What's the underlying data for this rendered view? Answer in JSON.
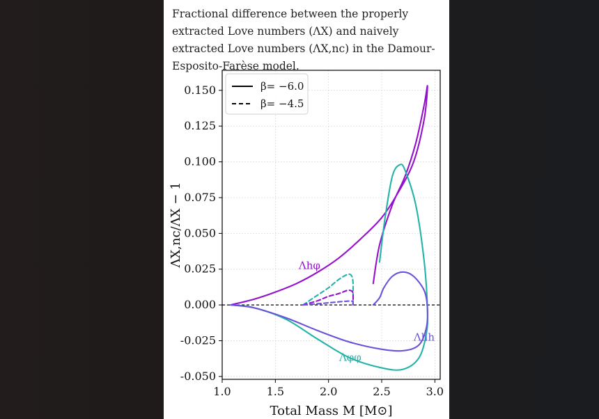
{
  "caption": "Fractional difference between the properly extracted Love numbers (ΛX) and naively extracted Love numbers (ΛX,nc) in the Damour-Esposito-Farèse model.",
  "colors": {
    "h_phi": "#9410cc",
    "phi_phi": "#22b3a8",
    "h_h": "#6a52d8",
    "baseline": "#000000",
    "background": "#1f1b1b"
  },
  "chart_data": {
    "type": "line",
    "xlabel": "Total Mass M [M⊙]",
    "ylabel": "ΛX,nc/ΛX − 1",
    "xlim": [
      1.0,
      3.05
    ],
    "ylim": [
      -0.052,
      0.164
    ],
    "xticks": [
      1.0,
      1.5,
      2.0,
      2.5,
      3.0
    ],
    "xtick_labels": [
      "1.0",
      "1.5",
      "2.0",
      "2.5",
      "3.0"
    ],
    "yticks": [
      -0.05,
      -0.025,
      0.0,
      0.025,
      0.05,
      0.075,
      0.1,
      0.125,
      0.15
    ],
    "ytick_labels": [
      "-0.050",
      "-0.025",
      "0.000",
      "0.025",
      "0.050",
      "0.075",
      "0.100",
      "0.125",
      "0.150"
    ],
    "grid": true,
    "legend": {
      "placement": "top-left",
      "entries": [
        {
          "label": "β= −6.0",
          "style": "solid"
        },
        {
          "label": "β= −4.5",
          "style": "dashed"
        }
      ]
    },
    "series": [
      {
        "curve": "Λhφ",
        "beta": -6.0,
        "style": "solid",
        "color": "#9410cc",
        "x": [
          1.08,
          1.3,
          1.5,
          1.7,
          1.9,
          2.1,
          2.3,
          2.5,
          2.65,
          2.8,
          2.9,
          2.93,
          2.9,
          2.82,
          2.72,
          2.6,
          2.48,
          2.42
        ],
        "y": [
          0.0,
          0.004,
          0.009,
          0.015,
          0.023,
          0.033,
          0.046,
          0.061,
          0.078,
          0.1,
          0.13,
          0.153,
          0.14,
          0.113,
          0.09,
          0.07,
          0.042,
          0.015
        ]
      },
      {
        "curve": "Λφφ",
        "beta": -6.0,
        "style": "solid",
        "color": "#22b3a8",
        "x": [
          1.08,
          1.3,
          1.6,
          1.9,
          2.2,
          2.5,
          2.7,
          2.85,
          2.92,
          2.93,
          2.9,
          2.82,
          2.72,
          2.67,
          2.6,
          2.53,
          2.48
        ],
        "y": [
          0.0,
          -0.002,
          -0.01,
          -0.024,
          -0.037,
          -0.044,
          -0.045,
          -0.037,
          -0.02,
          -0.003,
          0.03,
          0.07,
          0.094,
          0.098,
          0.09,
          0.06,
          0.03
        ]
      },
      {
        "curve": "Λhh",
        "beta": -6.0,
        "style": "solid",
        "color": "#6a52d8",
        "x": [
          1.08,
          1.3,
          1.6,
          1.9,
          2.2,
          2.5,
          2.7,
          2.85,
          2.92,
          2.93,
          2.9,
          2.8,
          2.7,
          2.6,
          2.52,
          2.48,
          2.42
        ],
        "y": [
          0.0,
          -0.002,
          -0.009,
          -0.018,
          -0.026,
          -0.031,
          -0.032,
          -0.028,
          -0.016,
          -0.002,
          0.01,
          0.02,
          0.023,
          0.02,
          0.012,
          0.005,
          0.0
        ]
      },
      {
        "curve": "Λφφ",
        "beta": -4.5,
        "style": "dashed",
        "color": "#22b3a8",
        "x": [
          1.76,
          1.9,
          2.0,
          2.1,
          2.17,
          2.21,
          2.23,
          2.23
        ],
        "y": [
          0.0,
          0.007,
          0.012,
          0.018,
          0.021,
          0.021,
          0.016,
          0.0
        ]
      },
      {
        "curve": "Λhφ",
        "beta": -4.5,
        "style": "dashed",
        "color": "#9410cc",
        "x": [
          1.76,
          1.9,
          2.0,
          2.1,
          2.17,
          2.21,
          2.23,
          2.23
        ],
        "y": [
          0.0,
          0.003,
          0.006,
          0.008,
          0.01,
          0.01,
          0.008,
          0.0
        ]
      },
      {
        "curve": "Λhh",
        "beta": -4.5,
        "style": "dashed",
        "color": "#6a52d8",
        "x": [
          1.76,
          1.9,
          2.0,
          2.1,
          2.17,
          2.21,
          2.23,
          2.23
        ],
        "y": [
          0.0,
          0.0008,
          0.0015,
          0.0022,
          0.0026,
          0.0027,
          0.0022,
          0.0
        ]
      }
    ],
    "annotations": [
      {
        "text": "Λhφ",
        "x": 1.72,
        "y": 0.025,
        "color": "#9410cc"
      },
      {
        "text": "Λhh",
        "x": 2.8,
        "y": -0.025,
        "color": "#6a52d8"
      },
      {
        "text": "Λφφ",
        "x": 2.1,
        "y": -0.039,
        "color": "#22b3a8"
      }
    ]
  }
}
